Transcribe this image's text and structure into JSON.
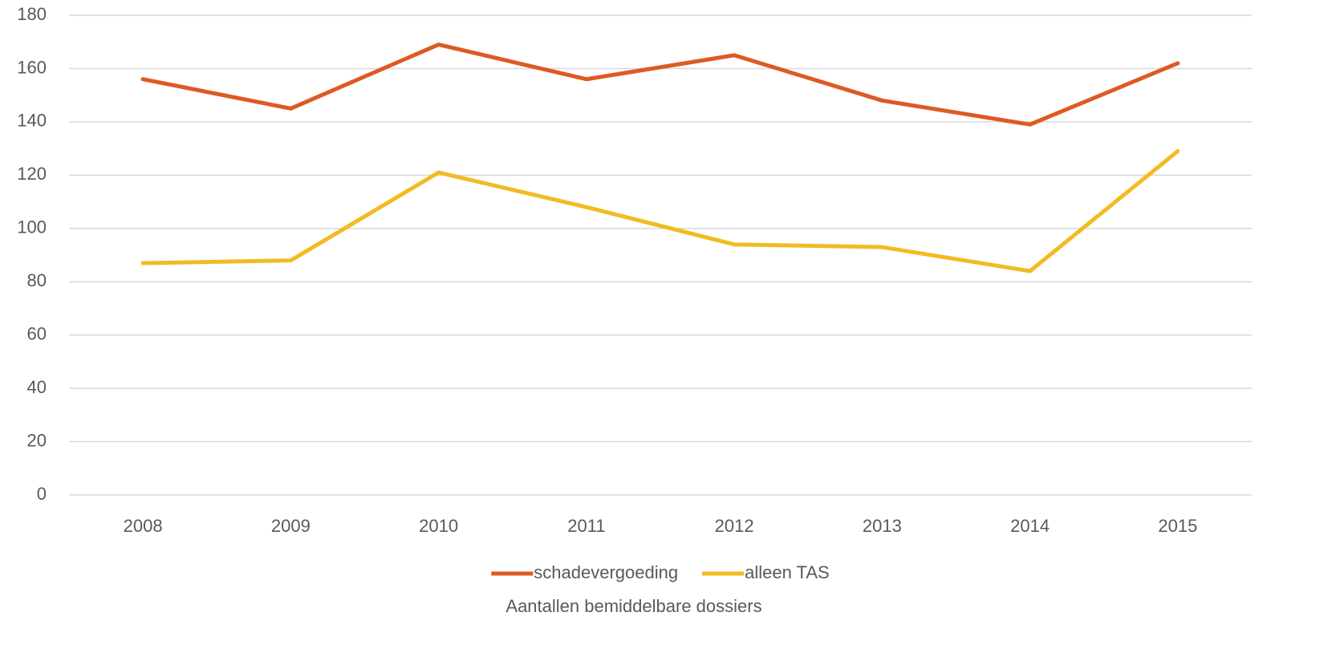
{
  "chart_data": {
    "type": "line",
    "xlabel": "Aantallen bemiddelbare dossiers",
    "categories": [
      "2008",
      "2009",
      "2010",
      "2011",
      "2012",
      "2013",
      "2014",
      "2015"
    ],
    "series": [
      {
        "name": "schadevergoeding",
        "color": "#dd5a23",
        "values": [
          156,
          145,
          169,
          156,
          165,
          148,
          139,
          162
        ]
      },
      {
        "name": "alleen TAS",
        "color": "#f2bb22",
        "values": [
          87,
          88,
          121,
          108,
          94,
          93,
          84,
          129
        ]
      }
    ],
    "ylim": [
      0,
      180
    ],
    "yticks": [
      0,
      20,
      40,
      60,
      80,
      100,
      120,
      140,
      160,
      180
    ],
    "grid": true,
    "legend": "bottom"
  }
}
